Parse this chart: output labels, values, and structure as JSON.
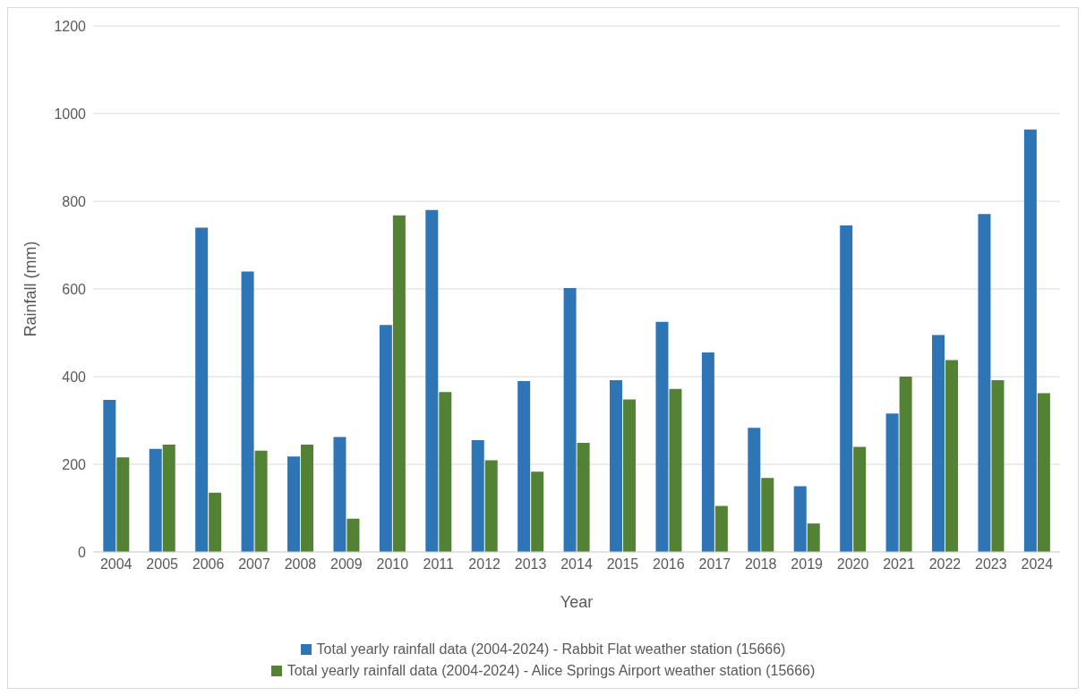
{
  "chart_data": {
    "type": "bar",
    "xlabel": "Year",
    "ylabel": "Rainfall (mm)",
    "categories": [
      "2004",
      "2005",
      "2006",
      "2007",
      "2008",
      "2009",
      "2010",
      "2011",
      "2012",
      "2013",
      "2014",
      "2015",
      "2016",
      "2017",
      "2018",
      "2019",
      "2020",
      "2021",
      "2022",
      "2023",
      "2024"
    ],
    "series": [
      {
        "name": "Total yearly rainfall data (2004-2024) - Rabbit Flat weather station (15666)",
        "color": "#2e75b6",
        "values": [
          347,
          235,
          740,
          640,
          218,
          262,
          518,
          780,
          255,
          390,
          602,
          392,
          525,
          455,
          283,
          150,
          745,
          316,
          495,
          771,
          964
        ]
      },
      {
        "name": "Total yearly rainfall data (2004-2024) - Alice Springs Airport weather station (15666)",
        "color": "#548235",
        "values": [
          216,
          245,
          135,
          231,
          245,
          76,
          768,
          365,
          209,
          183,
          249,
          348,
          372,
          105,
          169,
          65,
          240,
          400,
          438,
          392,
          362
        ]
      }
    ],
    "ylim": [
      0,
      1200
    ],
    "yticks": [
      0,
      200,
      400,
      600,
      800,
      1000,
      1200
    ],
    "grid": "y",
    "legend": "bottom"
  }
}
